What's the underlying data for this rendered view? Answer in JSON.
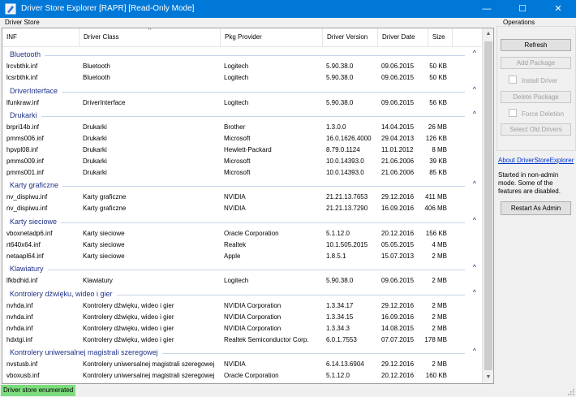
{
  "window": {
    "title": "Driver Store Explorer [RAPR] [Read-Only Mode]",
    "minimize": "—",
    "maximize": "☐",
    "close": "✕"
  },
  "labels": {
    "store": "Driver Store",
    "operations": "Operations"
  },
  "columns": {
    "inf": "INF",
    "cls": "Driver Class",
    "prov": "Pkg Provider",
    "ver": "Driver Version",
    "date": "Driver Date",
    "size": "Size"
  },
  "groups": [
    {
      "name": "Bluetooth",
      "rows": [
        [
          "lrcvbthk.inf",
          "Bluetooth",
          "Logitech",
          "5.90.38.0",
          "09.06.2015",
          "50 KB"
        ],
        [
          "lcsrbthk.inf",
          "Bluetooth",
          "Logitech",
          "5.90.38.0",
          "09.06.2015",
          "50 KB"
        ]
      ]
    },
    {
      "name": "DriverInterface",
      "rows": [
        [
          "lfunkraw.inf",
          "DriverInterface",
          "Logitech",
          "5.90.38.0",
          "09.06.2015",
          "56 KB"
        ]
      ]
    },
    {
      "name": "Drukarki",
      "rows": [
        [
          "brpri14b.inf",
          "Drukarki",
          "Brother",
          "1.3.0.0",
          "14.04.2015",
          "26 MB"
        ],
        [
          "pmms006.inf",
          "Drukarki",
          "Microsoft",
          "16.0.1626.4000",
          "29.04.2013",
          "126 KB"
        ],
        [
          "hpvpl08.inf",
          "Drukarki",
          "Hewlett-Packard",
          "8.79.0.1124",
          "11.01.2012",
          "8 MB"
        ],
        [
          "pmms009.inf",
          "Drukarki",
          "Microsoft",
          "10.0.14393.0",
          "21.06.2006",
          "39 KB"
        ],
        [
          "pmms001.inf",
          "Drukarki",
          "Microsoft",
          "10.0.14393.0",
          "21.06.2006",
          "85 KB"
        ]
      ]
    },
    {
      "name": "Karty graficzne",
      "rows": [
        [
          "nv_dispiwu.inf",
          "Karty graficzne",
          "NVIDIA",
          "21.21.13.7653",
          "29.12.2016",
          "411 MB"
        ],
        [
          "nv_dispiwu.inf",
          "Karty graficzne",
          "NVIDIA",
          "21.21.13.7290",
          "16.09.2016",
          "406 MB"
        ]
      ]
    },
    {
      "name": "Karty sieciowe",
      "rows": [
        [
          "vboxnetadp6.inf",
          "Karty sieciowe",
          "Oracle Corporation",
          "5.1.12.0",
          "20.12.2016",
          "156 KB"
        ],
        [
          "rt640x64.inf",
          "Karty sieciowe",
          "Realtek",
          "10.1.505.2015",
          "05.05.2015",
          "4 MB"
        ],
        [
          "netaapl64.inf",
          "Karty sieciowe",
          "Apple",
          "1.8.5.1",
          "15.07.2013",
          "2 MB"
        ]
      ]
    },
    {
      "name": "Klawiatury",
      "rows": [
        [
          "lfkbdhid.inf",
          "Klawiatury",
          "Logitech",
          "5.90.38.0",
          "09.06.2015",
          "2 MB"
        ]
      ]
    },
    {
      "name": "Kontrolery dźwięku, wideo i gier",
      "rows": [
        [
          "nvhda.inf",
          "Kontrolery dźwięku, wideo i gier",
          "NVIDIA Corporation",
          "1.3.34.17",
          "29.12.2016",
          "2 MB"
        ],
        [
          "nvhda.inf",
          "Kontrolery dźwięku, wideo i gier",
          "NVIDIA Corporation",
          "1.3.34.15",
          "16.09.2016",
          "2 MB"
        ],
        [
          "nvhda.inf",
          "Kontrolery dźwięku, wideo i gier",
          "NVIDIA Corporation",
          "1.3.34.3",
          "14.08.2015",
          "2 MB"
        ],
        [
          "hdxtgi.inf",
          "Kontrolery dźwięku, wideo i gier",
          "Realtek Semiconductor Corp.",
          "6.0.1.7553",
          "07.07.2015",
          "178 MB"
        ]
      ]
    },
    {
      "name": "Kontrolery uniwersalnej magistrali szeregowej",
      "rows": [
        [
          "nvstusb.inf",
          "Kontrolery uniwersalnej magistrali szeregowej",
          "NVIDIA",
          "6.14.13.6904",
          "29.12.2016",
          "2 MB"
        ],
        [
          "vboxusb.inf",
          "Kontrolery uniwersalnej magistrali szeregowej",
          "Oracle Corporation",
          "5.1.12.0",
          "20.12.2016",
          "160 KB"
        ]
      ]
    }
  ],
  "buttons": {
    "refresh": "Refresh",
    "add": "Add Package",
    "install": "Install Driver",
    "delete": "Delete Package",
    "force": "Force Deletion",
    "select_old": "Select Old Drivers",
    "restart": "Restart As Admin"
  },
  "about_link": "About DriverStoreExplorer",
  "note": "Started in non-admin mode. Some of the features are disabled.",
  "status": "Driver store enumerated",
  "colors": {
    "titlebar": "#0078d7",
    "group_text": "#1e3287",
    "status": "#7ddc7d"
  }
}
